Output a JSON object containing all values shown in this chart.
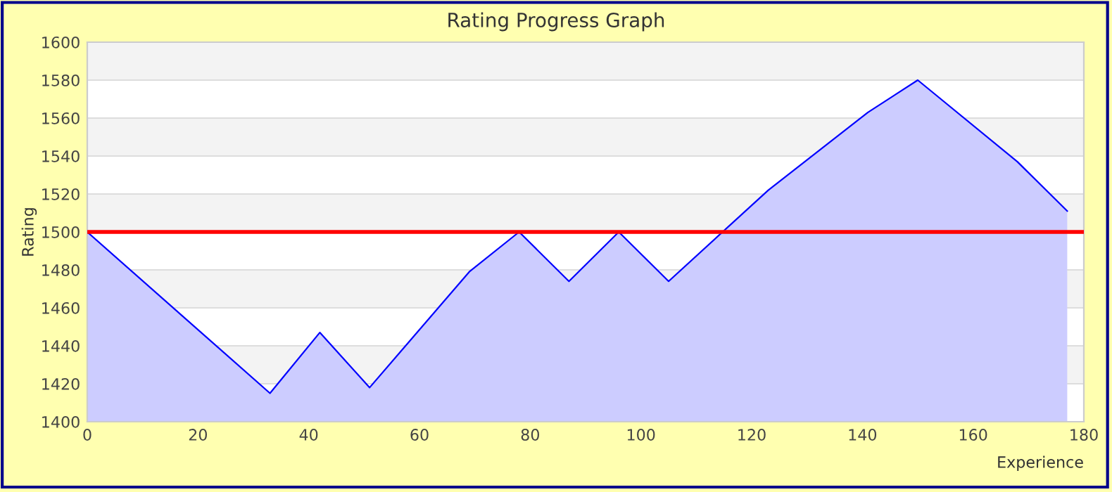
{
  "chart_data": {
    "type": "area",
    "title": "Rating Progress Graph",
    "xlabel": "Experience",
    "ylabel": "Rating",
    "x": [
      0,
      33,
      42,
      51,
      69,
      78,
      87,
      96,
      105,
      123,
      141,
      150,
      168,
      177
    ],
    "series": [
      {
        "color": "#0000ff",
        "values": [
          1500,
          1415,
          1447,
          1418,
          1479,
          1500,
          1474,
          1500,
          1474,
          1522,
          1563,
          1580,
          1537,
          1511
        ]
      }
    ],
    "xlim": [
      0,
      180
    ],
    "xticks": [
      0,
      20,
      40,
      60,
      80,
      100,
      120,
      140,
      160,
      180
    ],
    "ylim": [
      1400,
      1600
    ],
    "yticks": [
      1400,
      1420,
      1440,
      1460,
      1480,
      1500,
      1520,
      1540,
      1560,
      1580,
      1600
    ],
    "ref_lines": [
      {
        "axis": "y",
        "value": 1500,
        "color": "#ff0000"
      }
    ],
    "grid": "y",
    "legend": false
  }
}
